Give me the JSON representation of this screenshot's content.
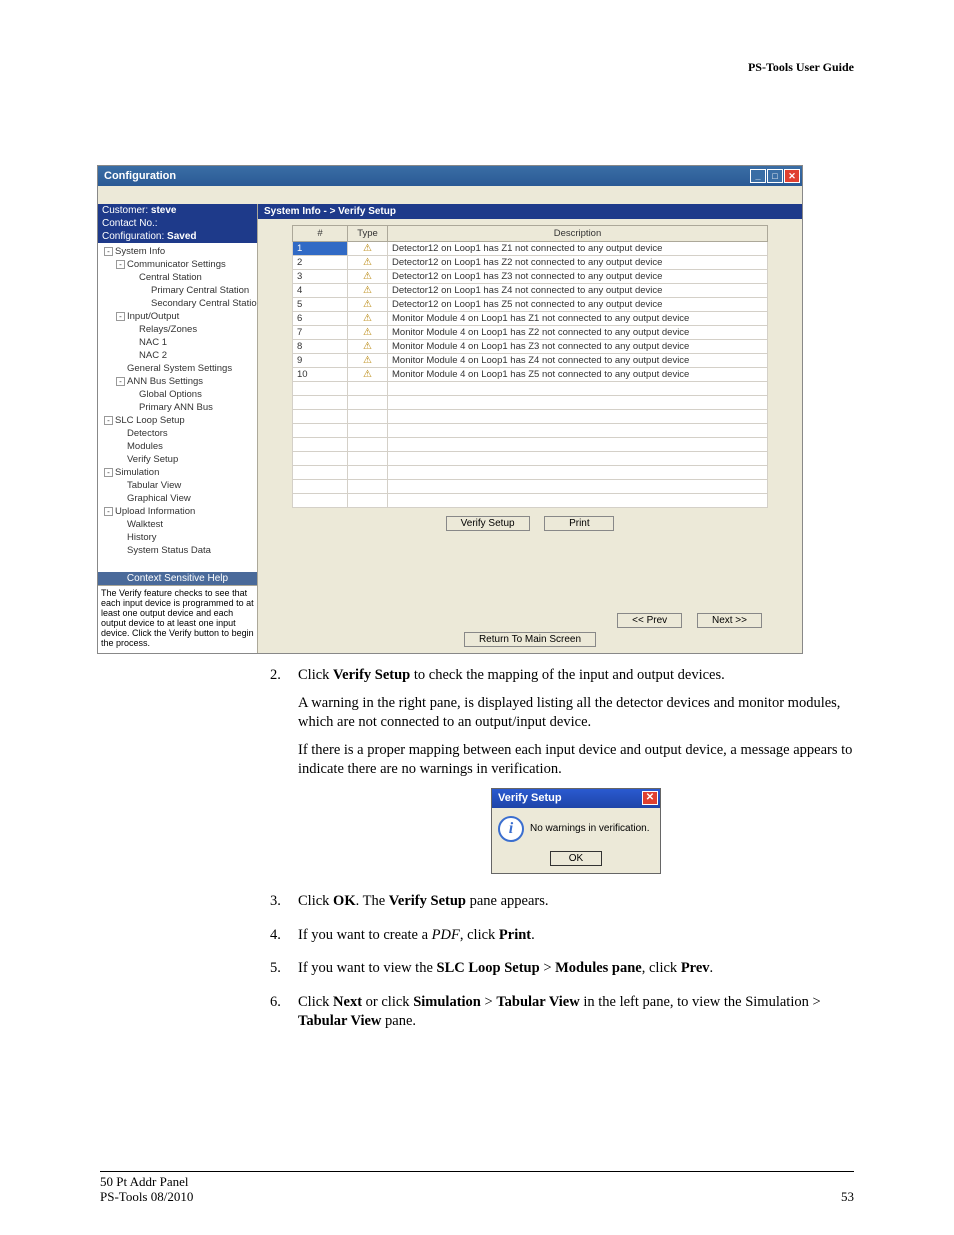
{
  "header": {
    "title": "PS-Tools User Guide"
  },
  "screenshot": {
    "window_title": "Configuration",
    "info": {
      "customer_label": "Customer:",
      "customer_value": "steve",
      "contact_label": "Contact No.:",
      "config_label": "Configuration:",
      "config_value": "Saved"
    },
    "tree": [
      {
        "indent": 0,
        "toggle": "-",
        "label": "System Info"
      },
      {
        "indent": 1,
        "toggle": "-",
        "label": "Communicator Settings"
      },
      {
        "indent": 2,
        "toggle": "",
        "label": "Central Station"
      },
      {
        "indent": 3,
        "toggle": "",
        "label": "Primary Central Station"
      },
      {
        "indent": 3,
        "toggle": "",
        "label": "Secondary Central Station"
      },
      {
        "indent": 1,
        "toggle": "-",
        "label": "Input/Output"
      },
      {
        "indent": 2,
        "toggle": "",
        "label": "Relays/Zones"
      },
      {
        "indent": 2,
        "toggle": "",
        "label": "NAC 1"
      },
      {
        "indent": 2,
        "toggle": "",
        "label": "NAC 2"
      },
      {
        "indent": 1,
        "toggle": "",
        "label": "General System Settings"
      },
      {
        "indent": 1,
        "toggle": "-",
        "label": "ANN Bus Settings"
      },
      {
        "indent": 2,
        "toggle": "",
        "label": "Global Options"
      },
      {
        "indent": 2,
        "toggle": "",
        "label": "Primary ANN Bus"
      },
      {
        "indent": 0,
        "toggle": "-",
        "label": "SLC Loop Setup"
      },
      {
        "indent": 1,
        "toggle": "",
        "label": "Detectors"
      },
      {
        "indent": 1,
        "toggle": "",
        "label": "Modules"
      },
      {
        "indent": 1,
        "toggle": "",
        "label": "Verify Setup"
      },
      {
        "indent": 0,
        "toggle": "-",
        "label": "Simulation"
      },
      {
        "indent": 1,
        "toggle": "",
        "label": "Tabular View"
      },
      {
        "indent": 1,
        "toggle": "",
        "label": "Graphical View"
      },
      {
        "indent": 0,
        "toggle": "-",
        "label": "Upload Information"
      },
      {
        "indent": 1,
        "toggle": "",
        "label": "Walktest"
      },
      {
        "indent": 1,
        "toggle": "",
        "label": "History"
      },
      {
        "indent": 1,
        "toggle": "",
        "label": "System Status Data"
      }
    ],
    "help": {
      "title": "Context Sensitive Help",
      "body": "The Verify feature checks to see that each input device is programmed to at least one output device and each output device to at least one input device. Click the Verify button to begin the process."
    },
    "crumb": "System Info - > Verify Setup",
    "columns": {
      "n": "#",
      "type": "Type",
      "desc": "Description"
    },
    "rows": [
      {
        "n": "1",
        "desc": "Detector12 on Loop1 has Z1 not connected to any output device",
        "sel": true
      },
      {
        "n": "2",
        "desc": "Detector12 on Loop1 has Z2 not connected to any output device"
      },
      {
        "n": "3",
        "desc": "Detector12 on Loop1 has Z3 not connected to any output device"
      },
      {
        "n": "4",
        "desc": "Detector12 on Loop1 has Z4 not connected to any output device"
      },
      {
        "n": "5",
        "desc": "Detector12 on Loop1 has Z5 not connected to any output device"
      },
      {
        "n": "6",
        "desc": "Monitor Module 4 on Loop1 has Z1 not connected to any output device"
      },
      {
        "n": "7",
        "desc": "Monitor Module 4 on Loop1 has Z2 not connected to any output device"
      },
      {
        "n": "8",
        "desc": "Monitor Module 4 on Loop1 has Z3 not connected to any output device"
      },
      {
        "n": "9",
        "desc": "Monitor Module 4 on Loop1 has Z4 not connected to any output device"
      },
      {
        "n": "10",
        "desc": "Monitor Module 4 on Loop1 has Z5 not connected to any output device"
      }
    ],
    "buttons": {
      "verify": "Verify Setup",
      "print": "Print",
      "prev": "<< Prev",
      "next": "Next >>",
      "return": "Return To Main Screen"
    }
  },
  "steps": {
    "s2n": "2.",
    "s2a_pre": "Click ",
    "s2a_bold": "Verify Setup",
    "s2a_post": " to check the mapping of the input and output devices.",
    "s2b": "A warning in the right pane, is displayed listing all the detector devices and monitor modules, which are not connected to an output/input device.",
    "s2c": "If there is a proper mapping between each input device and output device, a message appears to indicate there are no warnings in verification.",
    "s3n": "3.",
    "s3_pre": "Click ",
    "s3_b1": "OK",
    "s3_mid": ". The ",
    "s3_b2": "Verify Setup",
    "s3_post": " pane appears.",
    "s4n": "4.",
    "s4_pre": "If you want to create a ",
    "s4_i": "PDF",
    "s4_mid": ", click ",
    "s4_b": "Print",
    "s4_post": ".",
    "s5n": "5.",
    "s5_pre": "If you want to view the ",
    "s5_b1": "SLC Loop Setup",
    "s5_mid": " > ",
    "s5_b2": "Modules pane",
    "s5_mid2": ", click ",
    "s5_b3": "Prev",
    "s5_post": ".",
    "s6n": "6.",
    "s6_pre": "Click ",
    "s6_b1": "Next",
    "s6_mid1": " or click ",
    "s6_b2": "Simulation",
    "s6_mid2": " > ",
    "s6_b3": "Tabular View",
    "s6_mid3": " in the left pane, to view the Simulation > ",
    "s6_b4": "Tabular View",
    "s6_post": " pane."
  },
  "dialog": {
    "title": "Verify Setup",
    "msg": "No warnings in verification.",
    "ok": "OK"
  },
  "footer": {
    "l1": "50 Pt Addr Panel",
    "l2": "PS-Tools  08/2010",
    "page": "53"
  }
}
